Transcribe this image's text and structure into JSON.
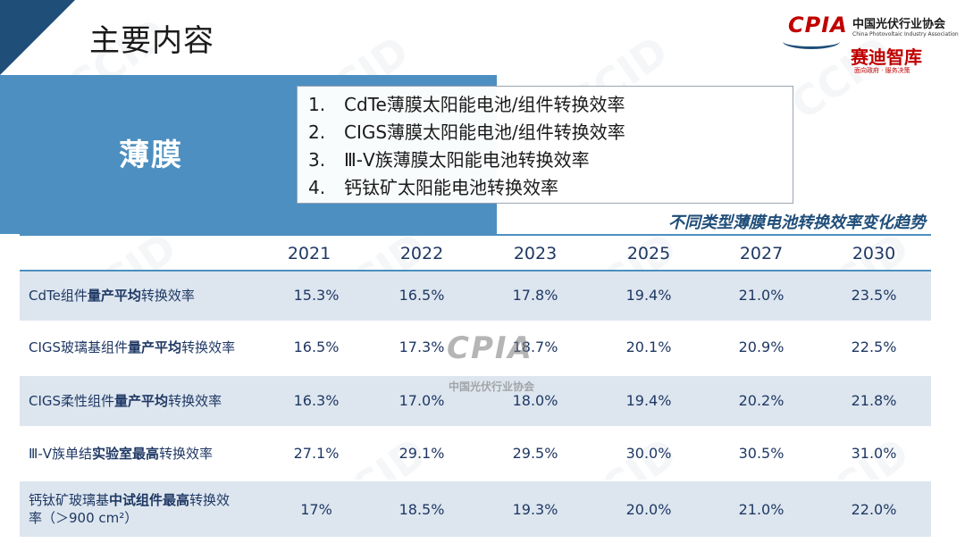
{
  "header": {
    "title": "主要内容"
  },
  "band": {
    "label": "薄膜"
  },
  "contents": {
    "items": [
      {
        "num": "1.",
        "text": "CdTe薄膜太阳能电池/组件转换效率"
      },
      {
        "num": "2.",
        "text": "CIGS薄膜太阳能电池/组件转换效率"
      },
      {
        "num": "3.",
        "text": "Ⅲ-Ⅴ族薄膜太阳能电池转换效率"
      },
      {
        "num": "4.",
        "text": "钙钛矿太阳能电池转换效率"
      }
    ]
  },
  "logo": {
    "cpia": "CPIA",
    "name_cn": "中国光伏行业协会",
    "name_en": "China Photovoltaic Industry Association",
    "ccid": "赛迪智库",
    "slogan": "面向政府 · 服务决策"
  },
  "watermark": {
    "text": "CCID",
    "center_cpia": "CPIA",
    "center_cn": "中国光伏行业协会"
  },
  "table": {
    "heading": "不同类型薄膜电池转换效率变化趋势",
    "years": [
      "2021",
      "2022",
      "2023",
      "2025",
      "2027",
      "2030"
    ],
    "rows": [
      {
        "label_pre": "CdTe组件",
        "label_bold": "量产平均",
        "label_post": "转换效率",
        "label_line2": "",
        "values": [
          "15.3%",
          "16.5%",
          "17.8%",
          "19.4%",
          "21.0%",
          "23.5%"
        ]
      },
      {
        "label_pre": "CIGS玻璃基组件",
        "label_bold": "量产平均",
        "label_post": "转换效率",
        "label_line2": "",
        "values": [
          "16.5%",
          "17.3%",
          "18.7%",
          "20.1%",
          "20.9%",
          "22.5%"
        ]
      },
      {
        "label_pre": "CIGS柔性组件",
        "label_bold": "量产平均",
        "label_post": "转换效率",
        "label_line2": "",
        "values": [
          "16.3%",
          "17.0%",
          "18.0%",
          "19.4%",
          "20.2%",
          "21.8%"
        ]
      },
      {
        "label_pre": "Ⅲ-Ⅴ族单结",
        "label_bold": "实验室最高",
        "label_post": "转换效率",
        "label_line2": "",
        "values": [
          "27.1%",
          "29.1%",
          "29.5%",
          "30.0%",
          "30.5%",
          "31.0%"
        ]
      },
      {
        "label_pre": "钙钛矿玻璃基",
        "label_bold": "中试组件最高",
        "label_post": "转换效",
        "label_line2": "率（＞900 cm²）",
        "values": [
          "17%",
          "18.5%",
          "19.3%",
          "20.0%",
          "21.0%",
          "22.0%"
        ]
      }
    ]
  }
}
